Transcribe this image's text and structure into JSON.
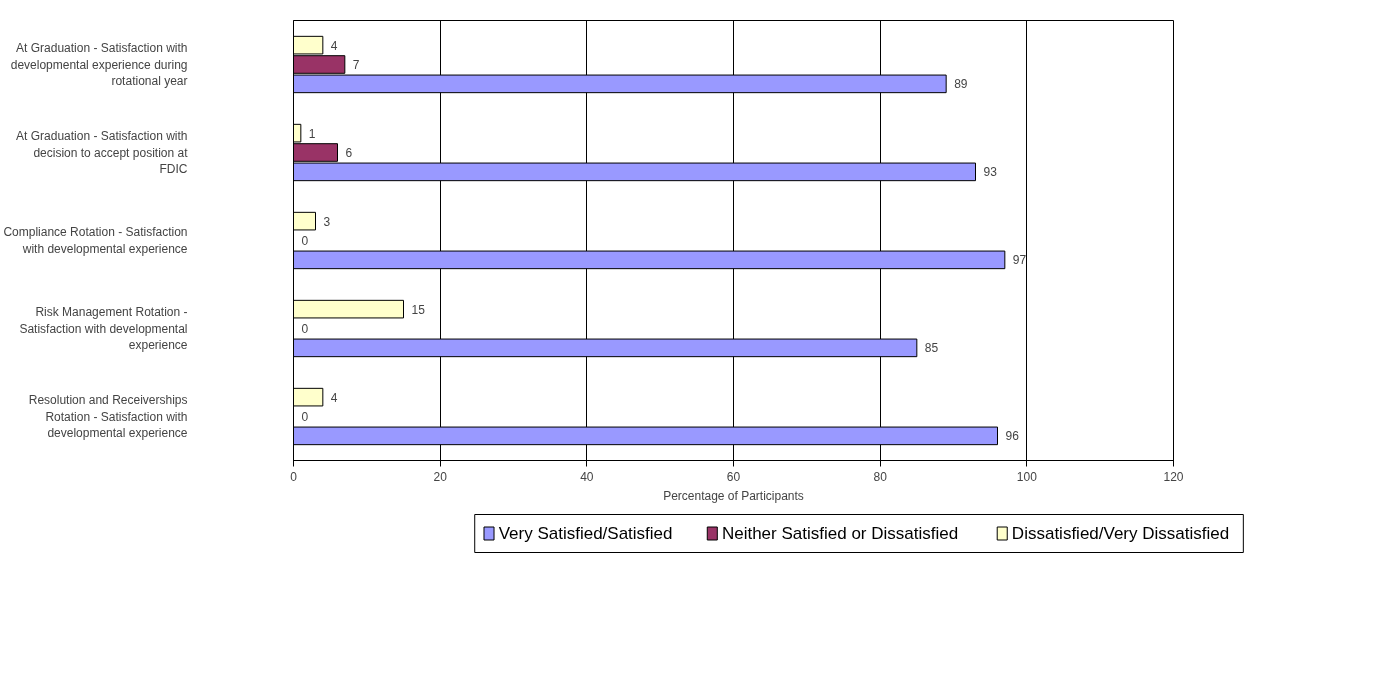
{
  "chart_data": {
    "type": "bar",
    "orientation": "horizontal",
    "xlabel": "Percentage of Participants",
    "categories": [
      "At Graduation - Satisfaction with developmental experience during rotational year",
      "At Graduation - Satisfaction with decision to accept position at FDIC",
      "Compliance Rotation - Satisfaction with developmental experience",
      "Risk Management Rotation - Satisfaction with developmental experience",
      "Resolution and Receiverships Rotation - Satisfaction with developmental experience"
    ],
    "series": [
      {
        "name": "Very Satisfied/Satisfied",
        "color": "#9999ff",
        "values": [
          89,
          93,
          97,
          85,
          96
        ]
      },
      {
        "name": "Neither Satisfied or Dissatisfied",
        "color": "#993366",
        "values": [
          7,
          6,
          0,
          0,
          0
        ]
      },
      {
        "name": "Dissatisfied/Very Dissatisfied",
        "color": "#ffffcc",
        "values": [
          4,
          1,
          3,
          15,
          4
        ]
      }
    ],
    "xlim": [
      0,
      120
    ],
    "xticks": [
      0,
      20,
      40,
      60,
      80,
      100,
      120
    ],
    "grid": "x",
    "legend": "bottom",
    "data_labels": true
  }
}
